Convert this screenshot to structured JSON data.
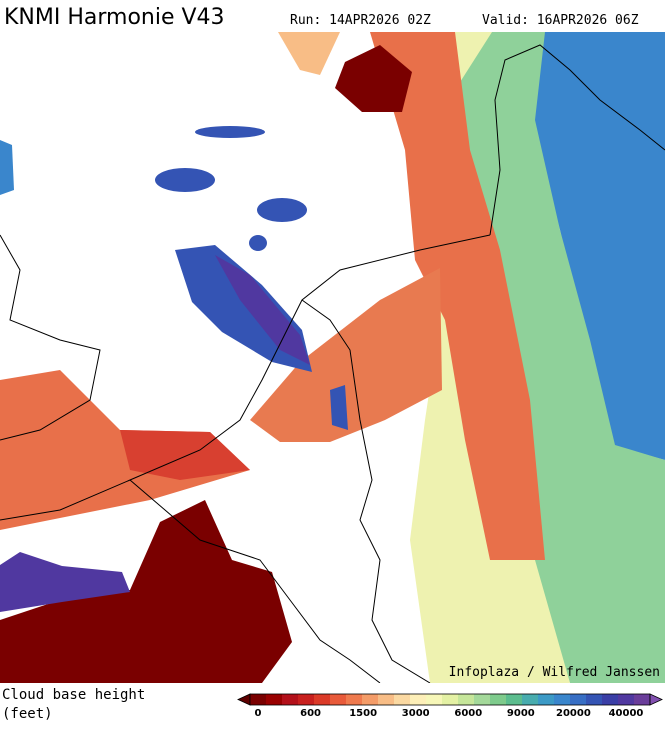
{
  "header": {
    "title": "KNMI Harmonie V43",
    "run": "Run: 14APR2026 02Z",
    "valid": "Valid: 16APR2026 06Z"
  },
  "credit": "Infoplaza / Wilfred Janssen",
  "legend": {
    "label_lines": [
      "Cloud base height",
      "(feet)"
    ],
    "ticks": [
      0,
      600,
      1500,
      3000,
      6000,
      9000,
      20000,
      40000
    ],
    "colors": [
      "#5e0000",
      "#7a0000",
      "#990000",
      "#b3101a",
      "#c8201e",
      "#db3a28",
      "#e85a3a",
      "#ef7a4e",
      "#f49c68",
      "#f8bd86",
      "#fbd9a2",
      "#fdefb8",
      "#f7f7b8",
      "#e4f1a4",
      "#c6e69a",
      "#a4d99a",
      "#7ecb8c",
      "#5cbd8e",
      "#48acae",
      "#3c9ac6",
      "#3a86cc",
      "#376ec4",
      "#3454b4",
      "#3a3ea6",
      "#5038a0",
      "#6a3d9a",
      "#8250b0"
    ]
  }
}
